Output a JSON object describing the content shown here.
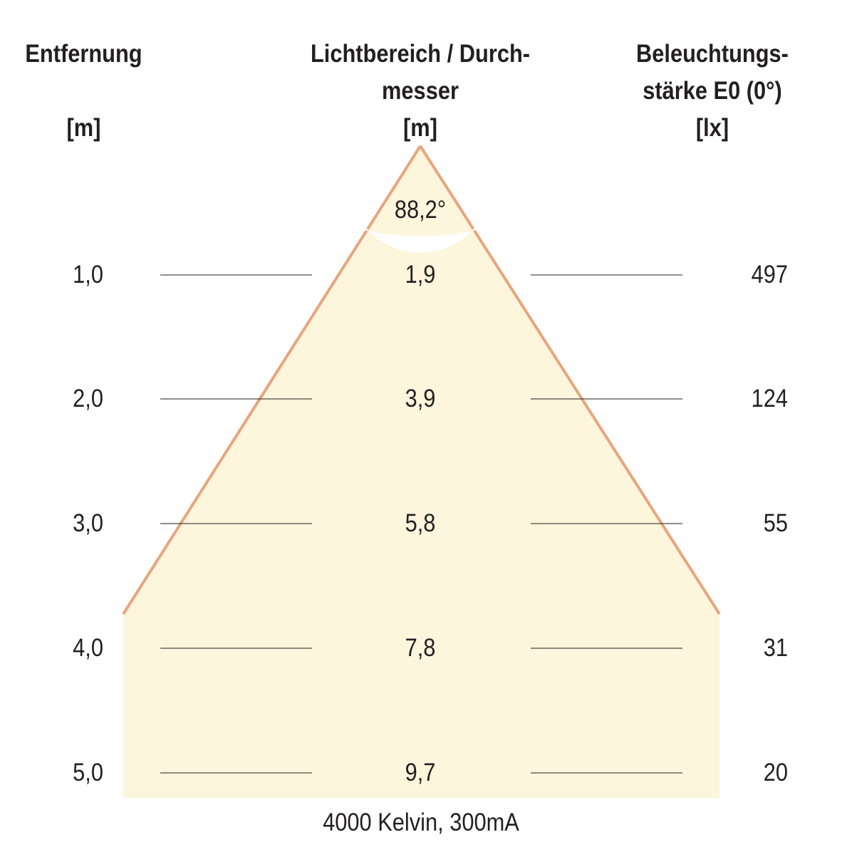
{
  "headers": {
    "distance": {
      "title": "Entfernung",
      "unit": "[m]"
    },
    "diameter": {
      "title_line1": "Lichtbereich / Durch-",
      "title_line2": "messer",
      "unit": "[m]"
    },
    "illuminance": {
      "title_line1": "Beleuchtungs-",
      "title_line2": "stärke E0 (0°)",
      "unit": "[lx]"
    }
  },
  "beam_angle": "88,2°",
  "rows": [
    {
      "distance": "1,0",
      "diameter": "1,9",
      "illuminance": "497"
    },
    {
      "distance": "2,0",
      "diameter": "3,9",
      "illuminance": "124"
    },
    {
      "distance": "3,0",
      "diameter": "5,8",
      "illuminance": "55"
    },
    {
      "distance": "4,0",
      "diameter": "7,8",
      "illuminance": "31"
    },
    {
      "distance": "5,0",
      "diameter": "9,7",
      "illuminance": "20"
    }
  ],
  "footer": "4000 Kelvin, 300mA",
  "colors": {
    "cone_fill": "#fdf5dc",
    "cone_edge": "#e6a67e",
    "lines": "#231f20"
  }
}
